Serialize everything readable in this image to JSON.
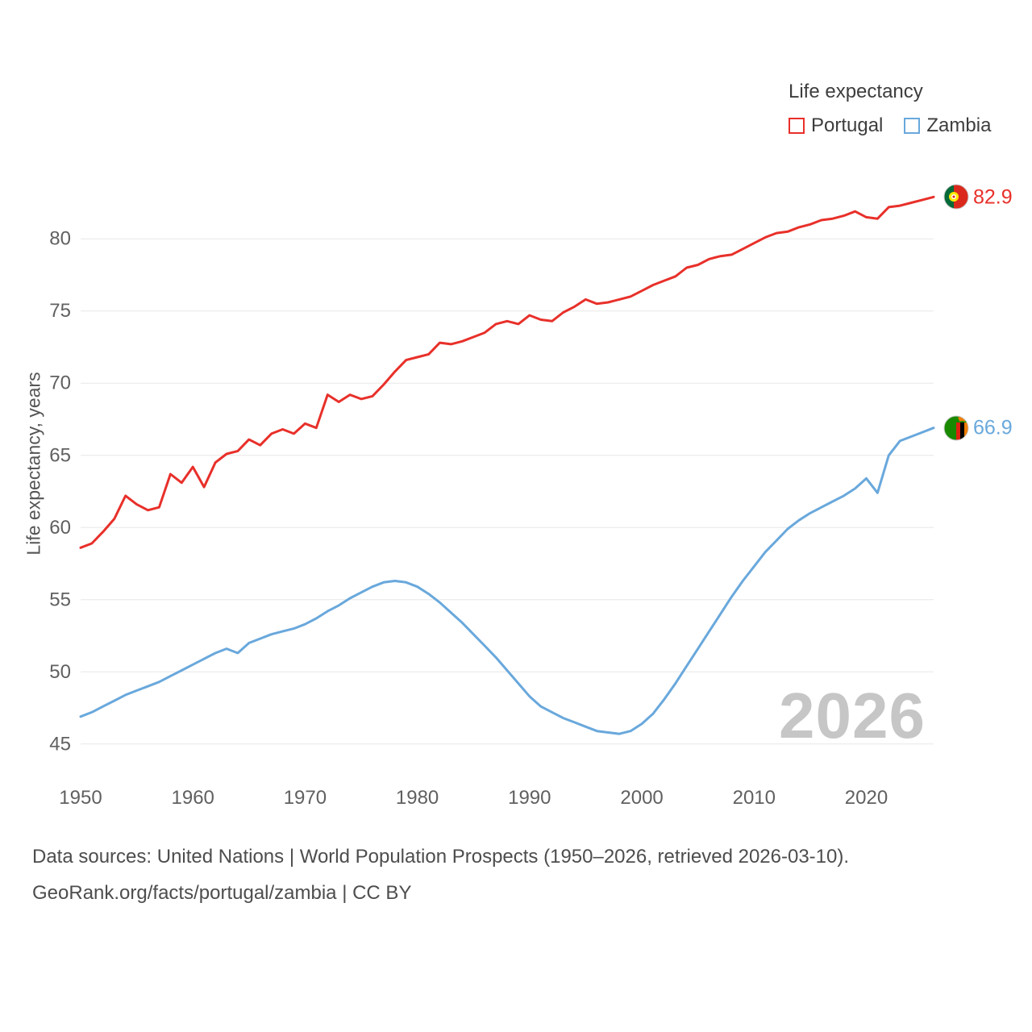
{
  "legend": {
    "title": "Life expectancy",
    "items": [
      {
        "label": "Portugal",
        "color": "#e8302a"
      },
      {
        "label": "Zambia",
        "color": "#69a8dc"
      }
    ]
  },
  "footer": {
    "line1": "Data sources: United Nations | World Population Prospects (1950–2026, retrieved 2026-03-10).",
    "line2": "GeoRank.org/facts/portugal/zambia | CC BY"
  },
  "chart_data": {
    "type": "line",
    "title": "Life expectancy",
    "xlabel": "",
    "ylabel": "Life expectancy, years",
    "watermark": "2026",
    "grid": "horizontal",
    "legend_position": "top-right",
    "x_start": 1950,
    "x_end": 2026,
    "xlim": [
      1950,
      2026
    ],
    "ylim": [
      43.2,
      83.7
    ],
    "x_ticks": [
      1950,
      1960,
      1970,
      1980,
      1990,
      2000,
      2010,
      2020
    ],
    "y_ticks": [
      45,
      50,
      55,
      60,
      65,
      70,
      75,
      80
    ],
    "series": [
      {
        "name": "Portugal",
        "color": "#e8302a",
        "end_label": "82.9",
        "values": [
          58.6,
          58.9,
          59.7,
          60.6,
          62.2,
          61.6,
          61.2,
          61.4,
          63.7,
          63.1,
          64.2,
          62.8,
          64.5,
          65.1,
          65.3,
          66.1,
          65.7,
          66.5,
          66.8,
          66.5,
          67.2,
          66.9,
          69.2,
          68.7,
          69.2,
          68.9,
          69.1,
          69.9,
          70.8,
          71.6,
          71.8,
          72.0,
          72.8,
          72.7,
          72.9,
          73.2,
          73.5,
          74.1,
          74.3,
          74.1,
          74.7,
          74.4,
          74.3,
          74.9,
          75.3,
          75.8,
          75.5,
          75.6,
          75.8,
          76.0,
          76.4,
          76.8,
          77.1,
          77.4,
          78.0,
          78.2,
          78.6,
          78.8,
          78.9,
          79.3,
          79.7,
          80.1,
          80.4,
          80.5,
          80.8,
          81.0,
          81.3,
          81.4,
          81.6,
          81.9,
          81.5,
          81.4,
          82.2,
          82.3,
          82.5,
          82.7,
          82.9
        ]
      },
      {
        "name": "Zambia",
        "color": "#69a8dc",
        "end_label": "66.9",
        "values": [
          46.9,
          47.2,
          47.6,
          48.0,
          48.4,
          48.7,
          49.0,
          49.3,
          49.7,
          50.1,
          50.5,
          50.9,
          51.3,
          51.6,
          51.3,
          52.0,
          52.3,
          52.6,
          52.8,
          53.0,
          53.3,
          53.7,
          54.2,
          54.6,
          55.1,
          55.5,
          55.9,
          56.2,
          56.3,
          56.2,
          55.9,
          55.4,
          54.8,
          54.1,
          53.4,
          52.6,
          51.8,
          51.0,
          50.1,
          49.2,
          48.3,
          47.6,
          47.2,
          46.8,
          46.5,
          46.2,
          45.9,
          45.8,
          45.7,
          45.9,
          46.4,
          47.1,
          48.1,
          49.2,
          50.4,
          51.6,
          52.8,
          54.0,
          55.2,
          56.3,
          57.3,
          58.3,
          59.1,
          59.9,
          60.5,
          61.0,
          61.4,
          61.8,
          62.2,
          62.7,
          63.4,
          62.4,
          65.0,
          66.0,
          66.3,
          66.6,
          66.9
        ]
      }
    ]
  }
}
